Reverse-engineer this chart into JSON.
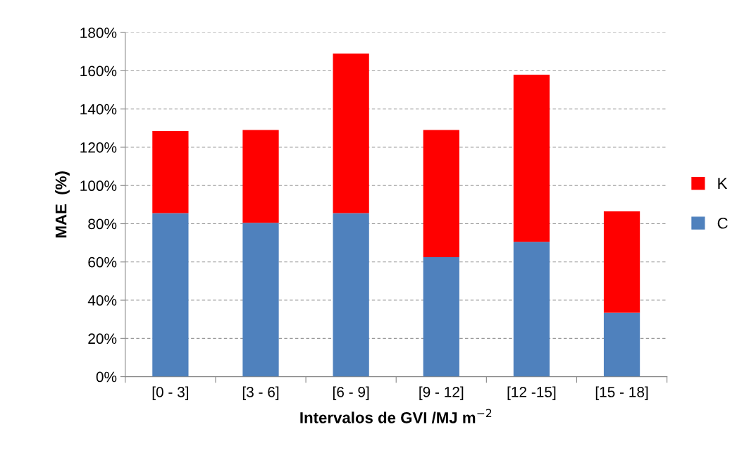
{
  "chart_data": {
    "type": "bar",
    "stacked": true,
    "categories": [
      "[0 - 3]",
      "[3 - 6]",
      "[6 - 9]",
      "[9 - 12]",
      "[12 -15]",
      "[15 - 18]"
    ],
    "series": [
      {
        "name": "C",
        "color": "#4f81bd",
        "values": [
          85.5,
          80.5,
          85.5,
          62.5,
          70.5,
          33.5
        ]
      },
      {
        "name": "K",
        "color": "#ff0000",
        "values": [
          43,
          48.5,
          83.5,
          66.5,
          87.5,
          53
        ]
      }
    ],
    "xlabel": "Intervalos de GVI /MJ m$^{−2}$",
    "ylabel": "MAE  (%)",
    "ylim": [
      0,
      180
    ],
    "yticks": [
      {
        "value": 0,
        "label": "0%"
      },
      {
        "value": 20,
        "label": "20%"
      },
      {
        "value": 40,
        "label": "40%"
      },
      {
        "value": 60,
        "label": "60%"
      },
      {
        "value": 80,
        "label": "80%"
      },
      {
        "value": 100,
        "label": "100%"
      },
      {
        "value": 120,
        "label": "120%"
      },
      {
        "value": 140,
        "label": "140%"
      },
      {
        "value": 160,
        "label": "160%"
      },
      {
        "value": 180,
        "label": "180%"
      }
    ],
    "grid": "y",
    "legend": "right"
  }
}
